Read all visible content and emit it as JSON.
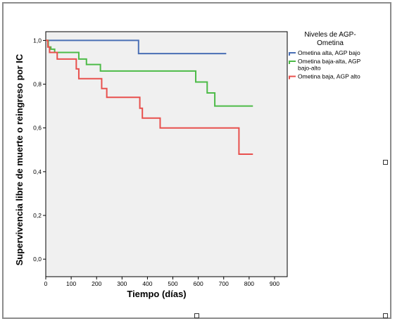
{
  "chart_data": {
    "type": "line",
    "step": true,
    "xlabel": "Tiempo (días)",
    "ylabel": "Supervivencia libre de muerte o reingreso por IC",
    "xlim": [
      0,
      950
    ],
    "ylim": [
      -0.08,
      1.04
    ],
    "x_ticks": [
      0,
      100,
      200,
      300,
      400,
      500,
      600,
      700,
      800,
      900
    ],
    "x_tick_labels": [
      "0",
      "100",
      "200",
      "300",
      "400",
      "500",
      "600",
      "700",
      "800",
      "900"
    ],
    "y_ticks": [
      0.0,
      0.2,
      0.4,
      0.6,
      0.8,
      1.0
    ],
    "y_tick_labels": [
      "0,0",
      "0,2",
      "0,4",
      "0,6",
      "0,8",
      "1,0"
    ],
    "grid": false,
    "legend": {
      "title": "Niveles de AGP-\nOmetina",
      "position": "right"
    },
    "series": [
      {
        "name": "Ometina alta, AGP bajo",
        "color": "#4a6fb5",
        "x": [
          0,
          365,
          710
        ],
        "y": [
          1.0,
          0.94,
          0.94
        ]
      },
      {
        "name": "Ometina baja-alta, AGP\nbajo-alto",
        "color": "#4dbb48",
        "x": [
          0,
          10,
          20,
          35,
          130,
          160,
          215,
          590,
          635,
          665,
          815
        ],
        "y": [
          1.0,
          0.97,
          0.96,
          0.945,
          0.915,
          0.89,
          0.86,
          0.81,
          0.76,
          0.7,
          0.7
        ]
      },
      {
        "name": "Ometina baja, AGP alto",
        "color": "#e8504d",
        "x": [
          0,
          8,
          15,
          45,
          120,
          130,
          220,
          240,
          370,
          380,
          450,
          760,
          815
        ],
        "y": [
          1.0,
          0.97,
          0.945,
          0.915,
          0.87,
          0.825,
          0.78,
          0.74,
          0.69,
          0.645,
          0.6,
          0.48,
          0.48
        ]
      }
    ]
  }
}
